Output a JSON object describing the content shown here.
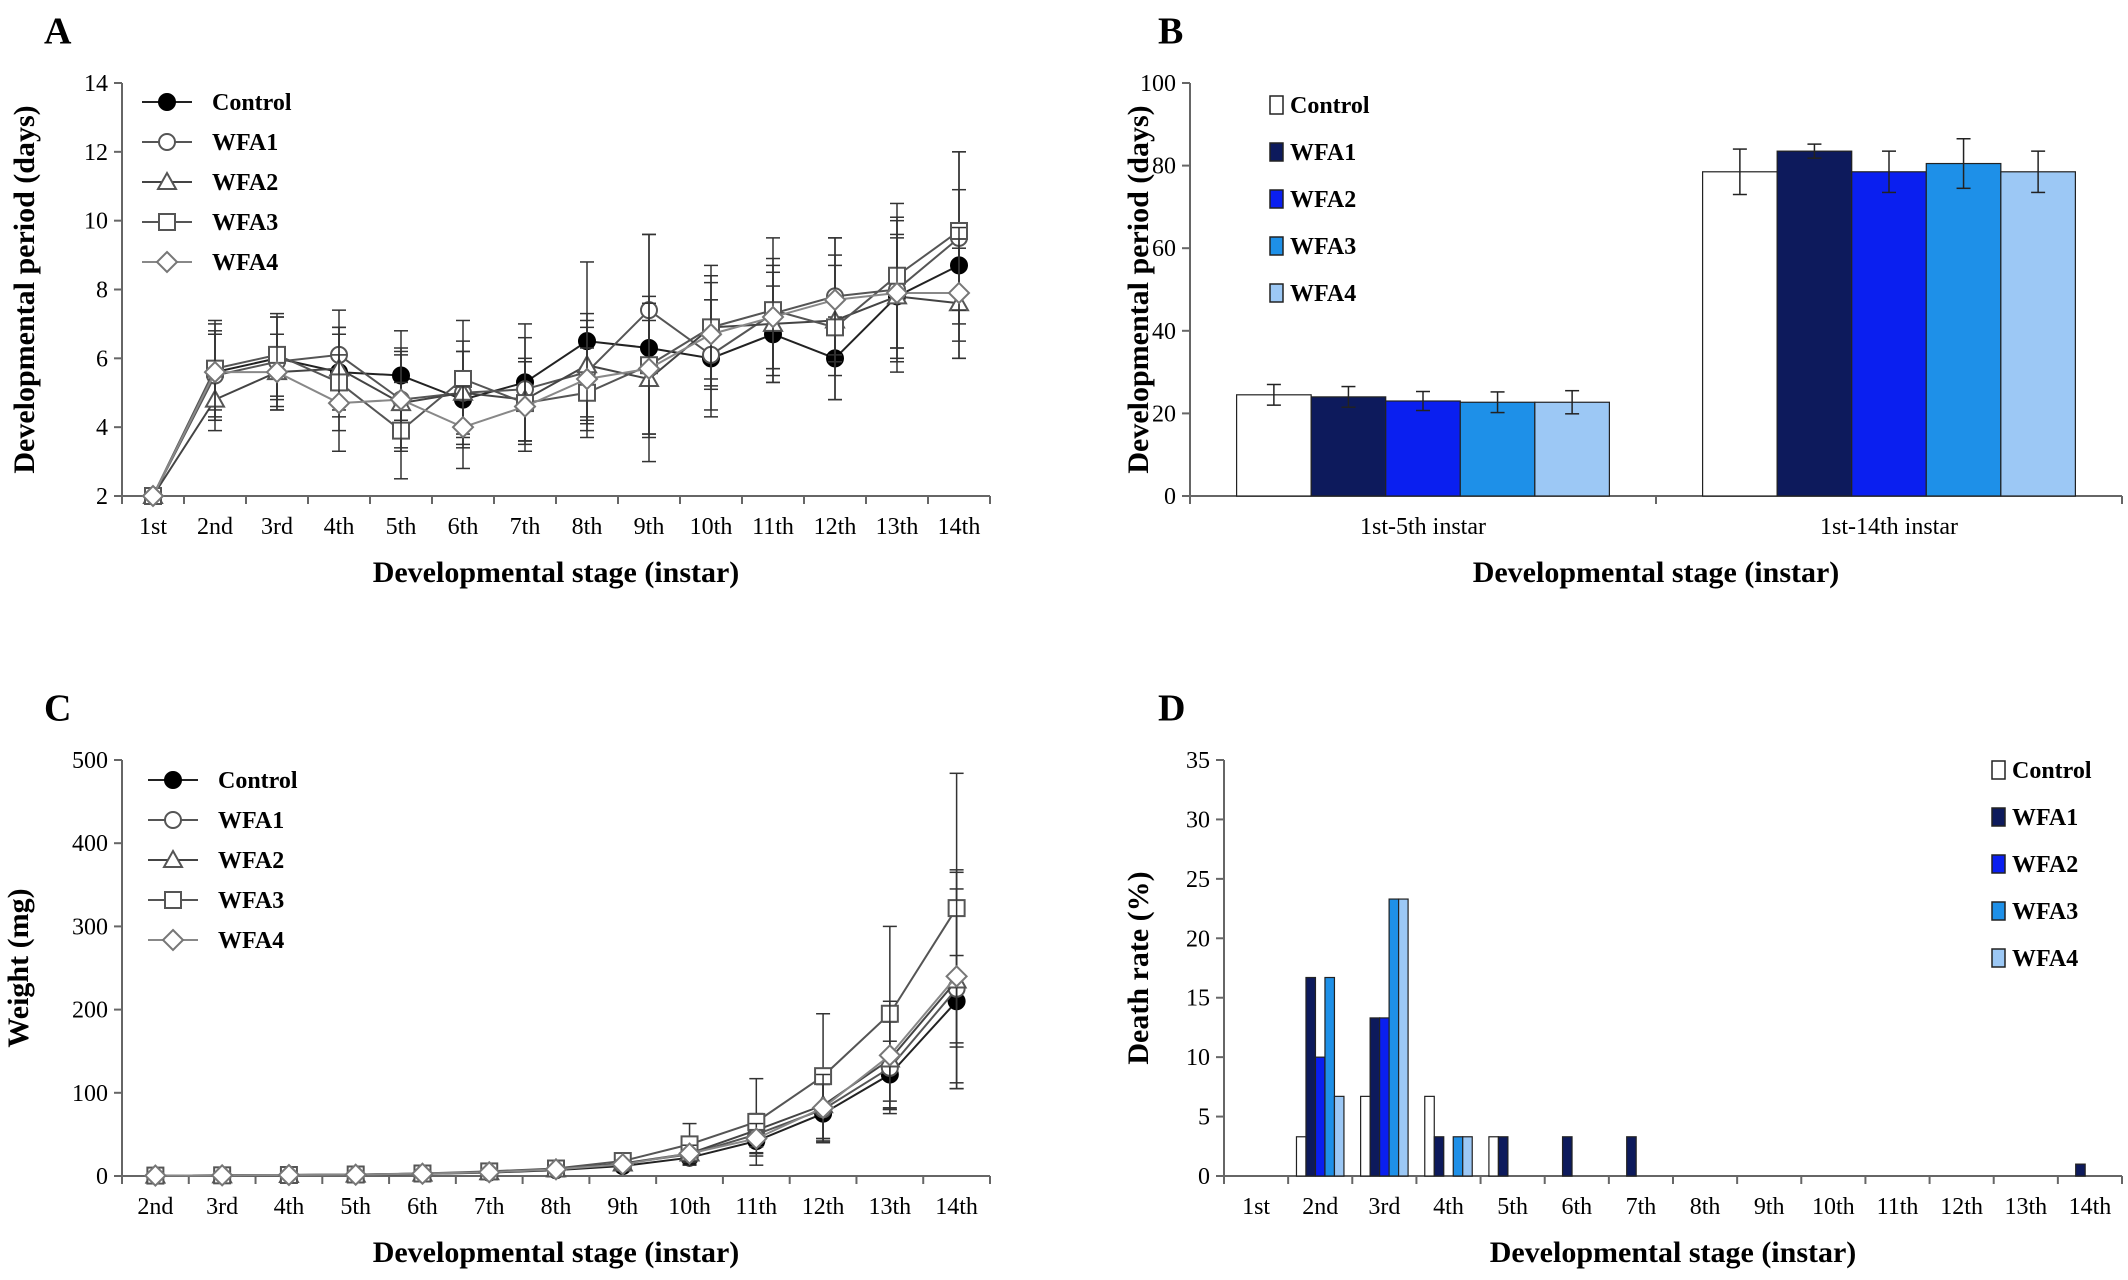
{
  "chart_data": [
    {
      "panel": "A",
      "type": "line",
      "xlabel": "Developmental stage (instar)",
      "ylabel": "Developmental period (days)",
      "ylim": [
        2,
        14
      ],
      "yticks": [
        "2",
        "4",
        "6",
        "8",
        "10",
        "12",
        "14"
      ],
      "categories": [
        "1st",
        "2nd",
        "3rd",
        "4th",
        "5th",
        "6th",
        "7th",
        "8th",
        "9th",
        "10th",
        "11th",
        "12th",
        "13th",
        "14th"
      ],
      "legend": "top-left",
      "series": [
        {
          "name": "Control",
          "marker": "circle-filled",
          "values": [
            2.0,
            5.6,
            6.0,
            5.6,
            5.5,
            4.8,
            5.3,
            6.5,
            6.3,
            6.0,
            6.7,
            6.0,
            7.8,
            8.7
          ],
          "err": [
            0,
            1.4,
            1.2,
            1.3,
            1.3,
            1.4,
            1.7,
            2.3,
            3.3,
            1.7,
            1.4,
            1.2,
            2.2,
            2.2
          ]
        },
        {
          "name": "WFA1",
          "marker": "circle-open",
          "values": [
            2.0,
            5.5,
            5.9,
            6.1,
            4.8,
            5.0,
            5.1,
            5.6,
            7.4,
            6.1,
            7.3,
            7.8,
            8.0,
            9.5
          ],
          "err": [
            0,
            1.3,
            1.3,
            1.3,
            1.5,
            1.5,
            1.5,
            1.5,
            2.2,
            1.6,
            1.6,
            1.7,
            2.1,
            2.5
          ]
        },
        {
          "name": "WFA2",
          "marker": "triangle-open",
          "values": [
            2.0,
            4.8,
            5.6,
            5.7,
            4.7,
            5.0,
            4.8,
            5.8,
            5.4,
            6.9,
            7.0,
            7.1,
            7.8,
            7.6
          ],
          "err": [
            0,
            0.9,
            1.1,
            1.2,
            1.4,
            1.2,
            1.2,
            1.5,
            1.7,
            1.5,
            1.5,
            1.6,
            1.8,
            1.6
          ]
        },
        {
          "name": "WFA3",
          "marker": "square-open",
          "values": [
            2.0,
            5.7,
            6.1,
            5.3,
            3.9,
            5.4,
            4.7,
            5.0,
            5.8,
            6.9,
            7.4,
            6.9,
            8.4,
            9.7
          ],
          "err": [
            0,
            1.4,
            1.2,
            1.4,
            1.4,
            1.7,
            1.2,
            1.3,
            2.0,
            1.8,
            2.1,
            2.1,
            2.1,
            2.3
          ]
        },
        {
          "name": "WFA4",
          "marker": "diamond-open",
          "values": [
            2.0,
            5.6,
            5.6,
            4.7,
            4.8,
            4.0,
            4.6,
            5.4,
            5.7,
            6.7,
            7.2,
            7.7,
            7.9,
            7.9
          ],
          "err": [
            0,
            1.1,
            1.1,
            1.4,
            1.4,
            1.2,
            1.3,
            1.5,
            1.9,
            1.5,
            1.5,
            1.8,
            1.6,
            1.9
          ]
        }
      ]
    },
    {
      "panel": "B",
      "type": "bar",
      "xlabel": "Developmental stage (instar)",
      "ylabel": "Developmental period (days)",
      "ylim": [
        0,
        100
      ],
      "yticks": [
        "0",
        "20",
        "40",
        "60",
        "80",
        "100"
      ],
      "categories": [
        "1st-5th instar",
        "1st-14th instar"
      ],
      "legend": "top-left",
      "series": [
        {
          "name": "Control",
          "color": "#ffffff",
          "values": [
            24.5,
            78.5
          ],
          "err": [
            2.5,
            5.5
          ]
        },
        {
          "name": "WFA1",
          "color": "#0d1a5c",
          "values": [
            24.0,
            83.5
          ],
          "err": [
            2.5,
            1.7
          ]
        },
        {
          "name": "WFA2",
          "color": "#0a1ff0",
          "values": [
            23.0,
            78.5
          ],
          "err": [
            2.3,
            5.0
          ]
        },
        {
          "name": "WFA3",
          "color": "#1e90e8",
          "values": [
            22.7,
            80.5
          ],
          "err": [
            2.5,
            6.0
          ]
        },
        {
          "name": "WFA4",
          "color": "#9cc8f5",
          "values": [
            22.7,
            78.5
          ],
          "err": [
            2.8,
            5.0
          ]
        }
      ]
    },
    {
      "panel": "C",
      "type": "line",
      "xlabel": "Developmental stage (instar)",
      "ylabel": "Weight (mg)",
      "ylim": [
        0,
        500
      ],
      "yticks": [
        "0",
        "100",
        "200",
        "300",
        "400",
        "500"
      ],
      "categories": [
        "2nd",
        "3rd",
        "4th",
        "5th",
        "6th",
        "7th",
        "8th",
        "9th",
        "10th",
        "11th",
        "12th",
        "13th",
        "14th"
      ],
      "legend": "top-left",
      "series": [
        {
          "name": "Control",
          "marker": "circle-filled",
          "values": [
            0.5,
            0.8,
            1.2,
            1.5,
            2.5,
            4,
            7,
            12,
            22,
            42,
            75,
            122,
            210
          ],
          "err": [
            0,
            0,
            0,
            0,
            1,
            1.5,
            2,
            4,
            8,
            18,
            35,
            40,
            55
          ]
        },
        {
          "name": "WFA1",
          "marker": "circle-open",
          "values": [
            0.5,
            0.8,
            1.2,
            1.6,
            2.8,
            4.5,
            8,
            15,
            26,
            50,
            80,
            130,
            225
          ],
          "err": [
            0,
            0,
            0,
            0,
            1,
            1.5,
            2.5,
            5,
            10,
            22,
            38,
            55,
            120
          ]
        },
        {
          "name": "WFA2",
          "marker": "triangle-open",
          "values": [
            0.5,
            0.8,
            1.2,
            1.6,
            2.8,
            4.5,
            8,
            15,
            27,
            55,
            85,
            140,
            235
          ],
          "err": [
            0,
            0,
            0,
            0,
            1,
            1.5,
            2.5,
            5,
            10,
            20,
            40,
            60,
            130
          ]
        },
        {
          "name": "WFA3",
          "marker": "square-open",
          "values": [
            0.5,
            0.8,
            1.2,
            1.8,
            3,
            5.5,
            9,
            18,
            38,
            65,
            120,
            195,
            322
          ],
          "err": [
            0,
            0,
            0,
            0,
            1,
            2,
            3,
            6,
            25,
            52,
            75,
            105,
            162
          ]
        },
        {
          "name": "WFA4",
          "marker": "diamond-open",
          "values": [
            0.5,
            0.8,
            1.2,
            1.6,
            2.8,
            4.5,
            8,
            14,
            27,
            45,
            82,
            145,
            240
          ],
          "err": [
            0,
            0,
            0,
            0,
            1,
            1.5,
            2.5,
            5,
            10,
            18,
            40,
            65,
            128
          ]
        }
      ]
    },
    {
      "panel": "D",
      "type": "bar",
      "xlabel": "Developmental stage (instar)",
      "ylabel": "Death rate (%)",
      "ylim": [
        0,
        35
      ],
      "yticks": [
        "0",
        "5",
        "10",
        "15",
        "20",
        "25",
        "30",
        "35"
      ],
      "categories": [
        "1st",
        "2nd",
        "3rd",
        "4th",
        "5th",
        "6th",
        "7th",
        "8th",
        "9th",
        "10th",
        "11th",
        "12th",
        "13th",
        "14th"
      ],
      "legend": "top-right",
      "series": [
        {
          "name": "Control",
          "color": "#ffffff",
          "values": [
            0,
            3.3,
            6.7,
            6.7,
            3.3,
            0,
            0,
            0,
            0,
            0,
            0,
            0,
            0,
            0
          ]
        },
        {
          "name": "WFA1",
          "color": "#0d1a5c",
          "values": [
            0,
            16.7,
            13.3,
            3.3,
            3.3,
            3.3,
            3.3,
            0,
            0,
            0,
            0,
            0,
            0,
            1.0
          ]
        },
        {
          "name": "WFA2",
          "color": "#0a1ff0",
          "values": [
            0,
            10.0,
            13.3,
            0,
            0,
            0,
            0,
            0,
            0,
            0,
            0,
            0,
            0,
            0
          ]
        },
        {
          "name": "WFA3",
          "color": "#1e90e8",
          "values": [
            0,
            16.7,
            23.3,
            3.3,
            0,
            0,
            0,
            0,
            0,
            0,
            0,
            0,
            0,
            0
          ]
        },
        {
          "name": "WFA4",
          "color": "#9cc8f5",
          "values": [
            0,
            6.7,
            23.3,
            3.3,
            0,
            0,
            0,
            0,
            0,
            0,
            0,
            0,
            0,
            0
          ]
        }
      ]
    }
  ]
}
